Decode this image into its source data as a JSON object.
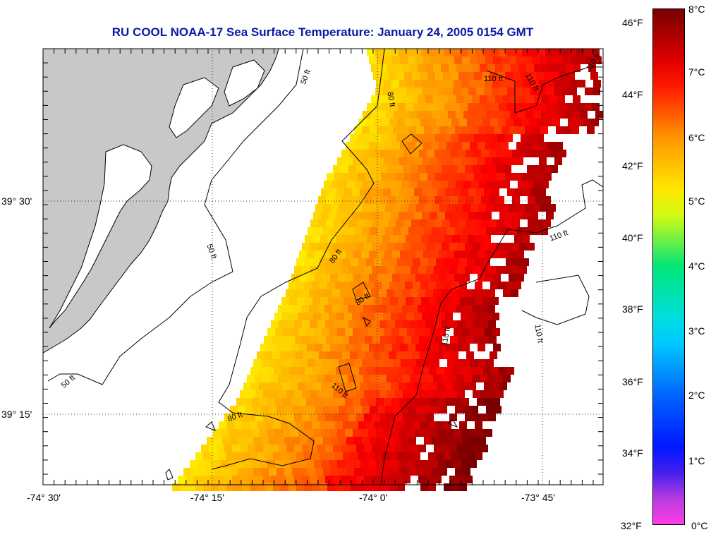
{
  "title": "RU COOL  NOAA-17  Sea Surface Temperature:  January 24, 2005 0154 GMT",
  "axes": {
    "x_ticks": [
      "-74° 30'",
      "-74° 15'",
      "-74° 0'",
      "-73° 45'"
    ],
    "y_ticks": [
      "39° 30'",
      "39° 15'"
    ]
  },
  "contour_labels": [
    "50 ft",
    "80 ft",
    "110 ft"
  ],
  "colorbar": {
    "fahrenheit": [
      "46°F",
      "44°F",
      "42°F",
      "40°F",
      "38°F",
      "36°F",
      "34°F",
      "32°F"
    ],
    "celsius": [
      "8°C",
      "7°C",
      "6°C",
      "5°C",
      "4°C",
      "3°C",
      "2°C",
      "1°C",
      "0°C"
    ],
    "min_c": 0,
    "max_c": 8
  },
  "colors": {
    "land": "#c8c8c8",
    "title": "#0a1aa6"
  }
}
